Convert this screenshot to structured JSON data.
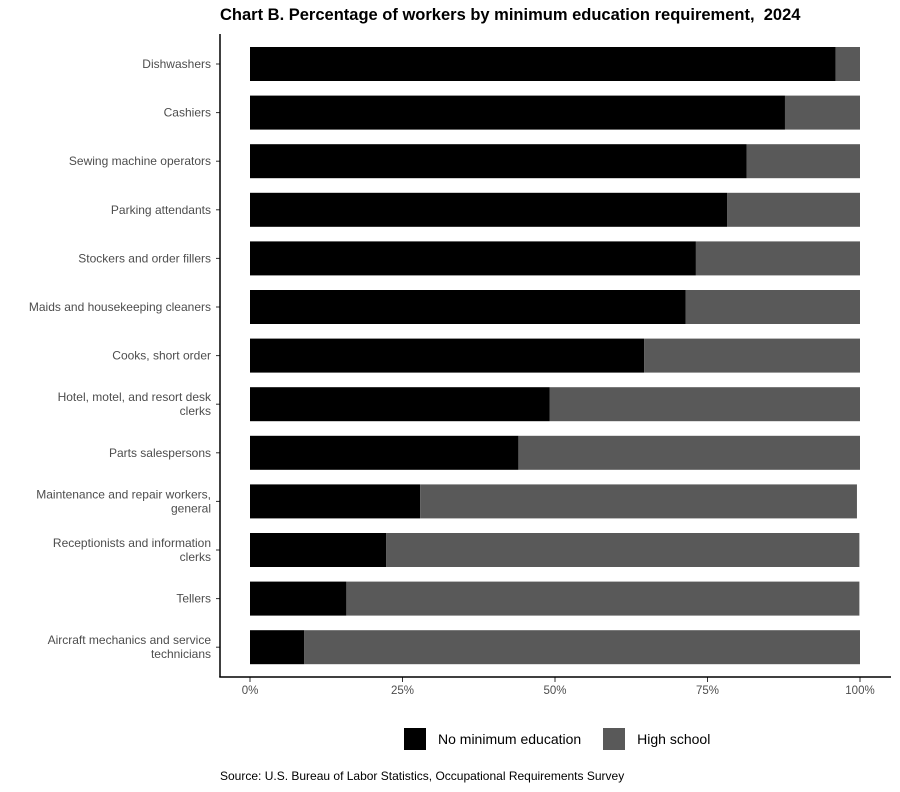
{
  "chart_data": {
    "type": "bar",
    "orientation": "horizontal",
    "stacked": true,
    "title": "Chart B. Percentage of workers by minimum education requirement,  2024",
    "categories": [
      "Dishwashers",
      "Cashiers",
      "Sewing machine operators",
      "Parking attendants",
      "Stockers and order fillers",
      "Maids and housekeeping cleaners",
      "Cooks, short order",
      "Hotel, motel, and resort desk clerks",
      "Parts salespersons",
      "Maintenance and repair workers, general",
      "Receptionists and information clerks",
      "Tellers",
      "Aircraft mechanics and service technicians"
    ],
    "category_lines": [
      [
        "Dishwashers"
      ],
      [
        "Cashiers"
      ],
      [
        "Sewing machine operators"
      ],
      [
        "Parking attendants"
      ],
      [
        "Stockers and order fillers"
      ],
      [
        "Maids and housekeeping cleaners"
      ],
      [
        "Cooks, short order"
      ],
      [
        "Hotel, motel, and resort desk",
        "clerks"
      ],
      [
        "Parts salespersons"
      ],
      [
        "Maintenance and repair workers,",
        "general"
      ],
      [
        "Receptionists and information",
        "clerks"
      ],
      [
        "Tellers"
      ],
      [
        "Aircraft mechanics and service",
        "technicians"
      ]
    ],
    "series": [
      {
        "name": "No minimum education",
        "color": "#000000",
        "values": [
          96,
          87.7,
          81.4,
          78.2,
          73.1,
          71.4,
          64.6,
          49.1,
          44,
          27.9,
          22.3,
          15.8,
          8.9
        ]
      },
      {
        "name": "High school",
        "color": "#595959",
        "values": [
          4,
          12.3,
          18.6,
          21.8,
          26.9,
          28.6,
          35.4,
          50.9,
          56,
          71.6,
          77.6,
          84.1,
          91.1
        ]
      }
    ],
    "xlim": [
      0,
      100
    ],
    "xticks": [
      "0%",
      "25%",
      "50%",
      "75%",
      "100%"
    ],
    "xtick_values": [
      0,
      25,
      50,
      75,
      100
    ],
    "grid": false,
    "legend_position": "bottom"
  },
  "source": "Source: U.S. Bureau of Labor Statistics, Occupational Requirements Survey"
}
